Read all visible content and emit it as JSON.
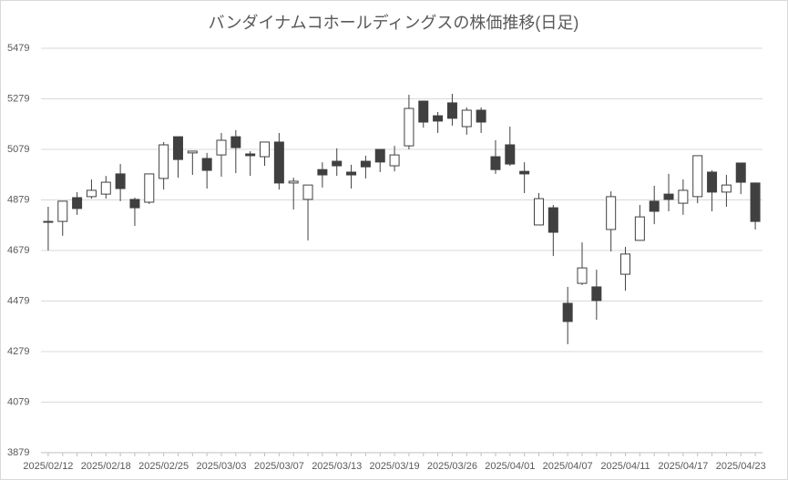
{
  "chart_data": {
    "type": "candlestick",
    "title": "バンダイナムコホールディングスの株価推移(日足)",
    "categories": [
      "2025/02/12",
      null,
      null,
      null,
      "2025/02/18",
      null,
      null,
      null,
      "2025/02/25",
      null,
      null,
      null,
      "2025/03/03",
      null,
      null,
      null,
      "2025/03/07",
      null,
      null,
      null,
      "2025/03/13",
      null,
      null,
      null,
      "2025/03/19",
      null,
      null,
      null,
      "2025/03/26",
      null,
      null,
      null,
      "2025/04/01",
      null,
      null,
      null,
      "2025/04/07",
      null,
      null,
      null,
      "2025/04/11",
      null,
      null,
      null,
      "2025/04/17",
      null,
      null,
      null,
      "2025/04/23",
      null
    ],
    "open": [
      4791,
      4794,
      4888,
      4892,
      4902,
      4982,
      4881,
      4870,
      4964,
      5129,
      5065,
      5043,
      5057,
      5129,
      5061,
      5050,
      5108,
      4946,
      4881,
      4999,
      5032,
      4989,
      5032,
      5079,
      5014,
      5093,
      5270,
      5212,
      5263,
      5169,
      5234,
      5050,
      5097,
      4992,
      4780,
      4848,
      4470,
      4549,
      4535,
      4762,
      4585,
      4719,
      4874,
      4902,
      4866,
      4892,
      4989,
      4910,
      5025,
      4946
    ],
    "high": [
      4852,
      4874,
      4910,
      4960,
      4974,
      5021,
      4888,
      4982,
      5108,
      5129,
      5072,
      5065,
      5144,
      5155,
      5072,
      5108,
      5144,
      4967,
      4938,
      5028,
      5083,
      5018,
      5054,
      5079,
      5093,
      5295,
      5270,
      5227,
      5299,
      5245,
      5245,
      5115,
      5169,
      5028,
      4906,
      4859,
      4535,
      4711,
      4603,
      4913,
      4693,
      4859,
      4935,
      4982,
      4960,
      5054,
      4996,
      4978,
      5025,
      4946
    ],
    "low": [
      4679,
      4737,
      4820,
      4884,
      4884,
      4874,
      4776,
      4863,
      4920,
      4967,
      4978,
      4924,
      4971,
      4985,
      4974,
      5014,
      4920,
      4841,
      4719,
      4928,
      4974,
      4924,
      4964,
      4989,
      4992,
      5079,
      5165,
      5144,
      5173,
      5137,
      5144,
      4982,
      5014,
      4906,
      4780,
      4657,
      4308,
      4542,
      4405,
      4675,
      4520,
      4719,
      4783,
      4834,
      4820,
      4866,
      4834,
      4852,
      4902,
      4762
    ],
    "close": [
      4794,
      4874,
      4845,
      4917,
      4949,
      4924,
      4848,
      4982,
      5097,
      5039,
      5072,
      4996,
      5115,
      5086,
      5054,
      5108,
      4946,
      4953,
      4938,
      4978,
      5014,
      4978,
      5010,
      5029,
      5057,
      5241,
      5187,
      5191,
      5202,
      5234,
      5187,
      4999,
      5021,
      4982,
      4884,
      4751,
      4398,
      4610,
      4481,
      4892,
      4665,
      4812,
      4834,
      4881,
      4917,
      5054,
      4910,
      4938,
      4949,
      4794
    ],
    "up_color": "#ffffff",
    "down_color": "#404040",
    "ylim": [
      3879,
      5479
    ],
    "yticks": [
      3879,
      4079,
      4279,
      4479,
      4679,
      4879,
      5079,
      5279,
      5479
    ],
    "grid": true
  }
}
